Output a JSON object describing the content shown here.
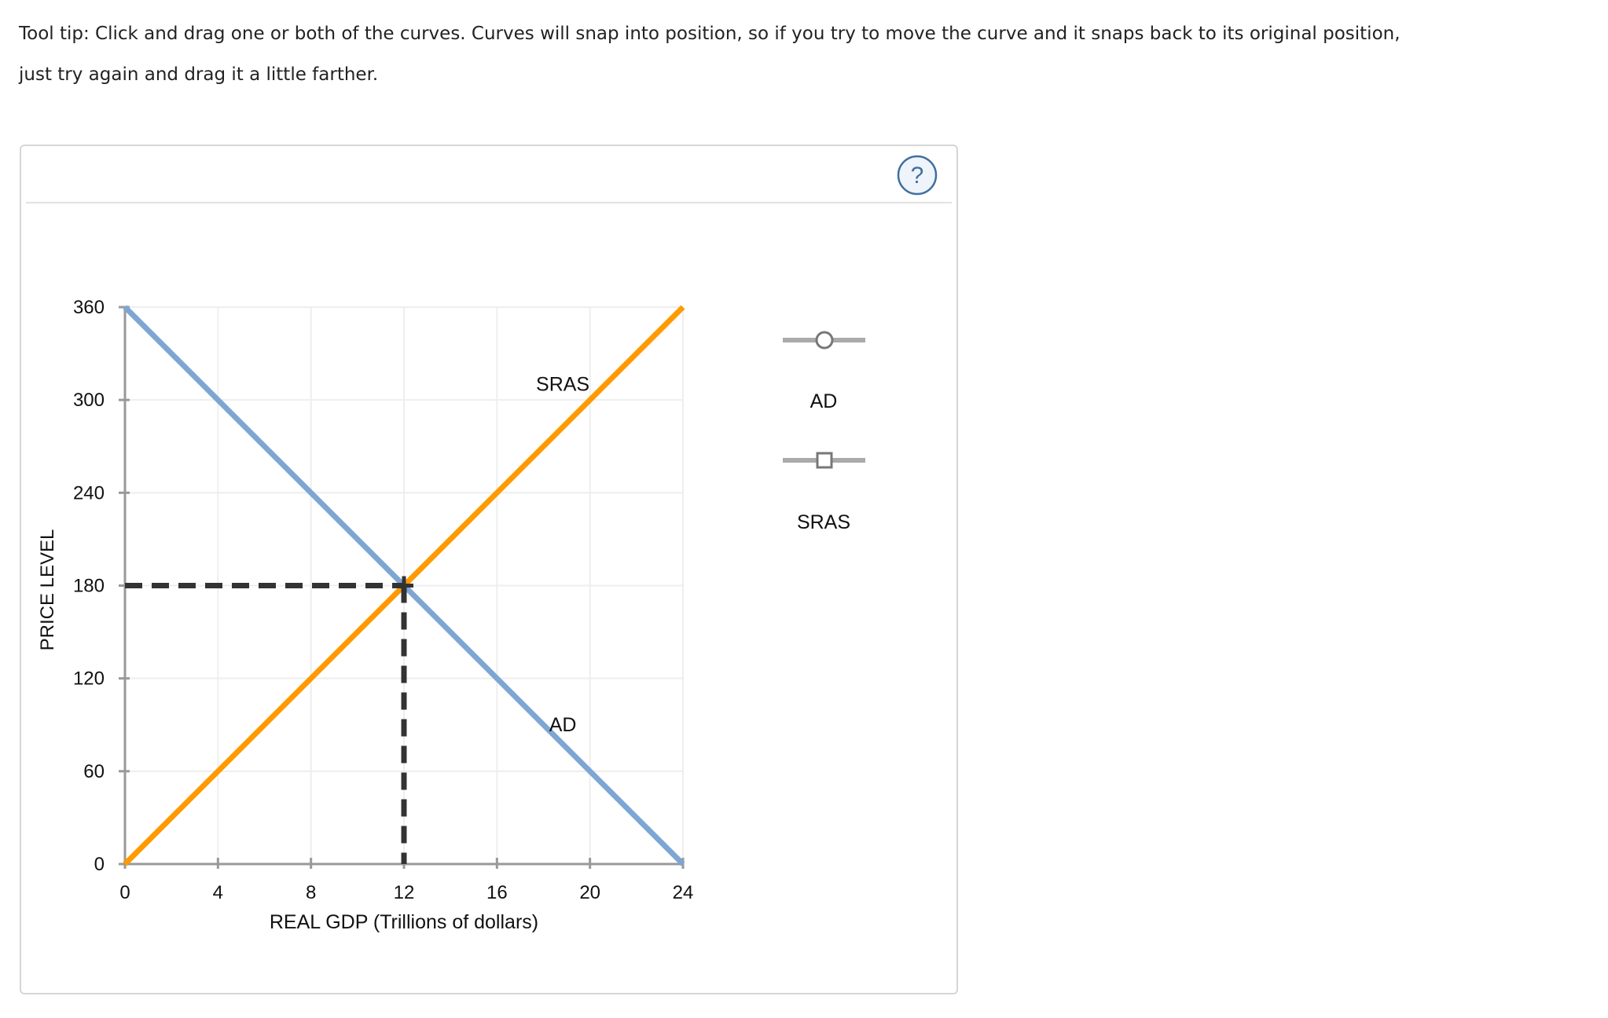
{
  "tooltip": {
    "line1": "Tool tip: Click and drag one or both of the curves. Curves will snap into position, so if you try to move the curve and it snaps back to its original position,",
    "line2": "just try again and drag it a little farther."
  },
  "help_icon": "question-circle-icon",
  "legend": {
    "items": [
      {
        "label": "AD",
        "marker": "circle",
        "color": "#7ea6d3"
      },
      {
        "label": "SRAS",
        "marker": "square",
        "color": "#ff9a00"
      }
    ]
  },
  "chart_data": {
    "type": "line",
    "xlabel": "REAL GDP (Trillions of dollars)",
    "ylabel": "PRICE LEVEL",
    "xlim": [
      0,
      24
    ],
    "ylim": [
      0,
      360
    ],
    "xticks": [
      "0",
      "4",
      "8",
      "12",
      "16",
      "20",
      "24"
    ],
    "yticks": [
      "0",
      "60",
      "120",
      "180",
      "240",
      "300",
      "360"
    ],
    "grid": true,
    "series": [
      {
        "name": "AD",
        "color": "#7ea6d3",
        "x": [
          0,
          24
        ],
        "y": [
          360,
          0
        ],
        "label_at": [
          19,
          90
        ]
      },
      {
        "name": "SRAS",
        "color": "#ff9a00",
        "x": [
          0,
          24
        ],
        "y": [
          0,
          360
        ],
        "label_at": [
          19,
          310
        ]
      }
    ],
    "equilibrium": {
      "x": 12,
      "y": 180
    }
  }
}
